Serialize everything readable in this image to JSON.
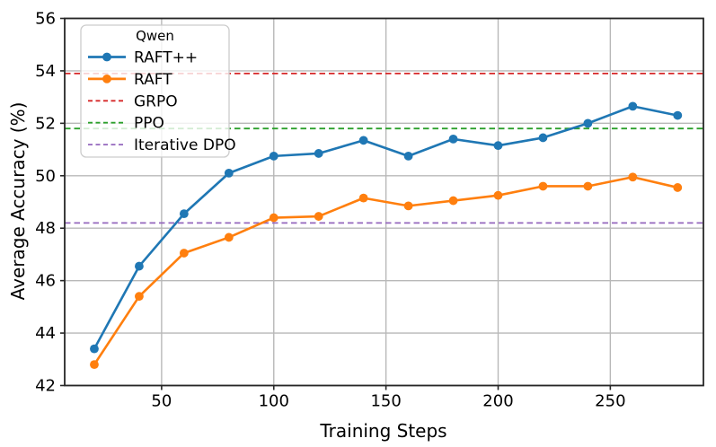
{
  "chart_data": {
    "type": "line",
    "title": "",
    "xlabel": "Training Steps",
    "ylabel": "Average Accuracy (%)",
    "xlim": [
      6.8,
      291.5
    ],
    "ylim": [
      42,
      56
    ],
    "xticks": [
      50,
      100,
      150,
      200,
      250
    ],
    "yticks": [
      42,
      44,
      46,
      48,
      50,
      52,
      54,
      56
    ],
    "grid": true,
    "legend": {
      "title": "Qwen",
      "position": "upper-left"
    },
    "x": [
      20,
      40,
      60,
      80,
      100,
      120,
      140,
      160,
      180,
      200,
      220,
      240,
      260,
      280
    ],
    "series": [
      {
        "name": "RAFT++",
        "color": "#1f77b4",
        "style": "solid",
        "marker": "circle",
        "values": [
          43.4,
          46.55,
          48.55,
          50.1,
          50.75,
          50.85,
          51.35,
          50.75,
          51.4,
          51.15,
          51.45,
          52.0,
          52.65,
          52.3
        ]
      },
      {
        "name": "RAFT",
        "color": "#ff7f0e",
        "style": "solid",
        "marker": "circle",
        "values": [
          42.8,
          45.4,
          47.05,
          47.65,
          48.4,
          48.45,
          49.15,
          48.85,
          49.05,
          49.25,
          49.6,
          49.6,
          49.95,
          49.55
        ]
      }
    ],
    "hlines": [
      {
        "name": "GRPO",
        "value": 53.9,
        "color": "#d62728",
        "style": "dashed"
      },
      {
        "name": "PPO",
        "value": 51.8,
        "color": "#2ca02c",
        "style": "dashed"
      },
      {
        "name": "Iterative DPO",
        "value": 48.2,
        "color": "#9467bd",
        "style": "dashed"
      }
    ]
  }
}
